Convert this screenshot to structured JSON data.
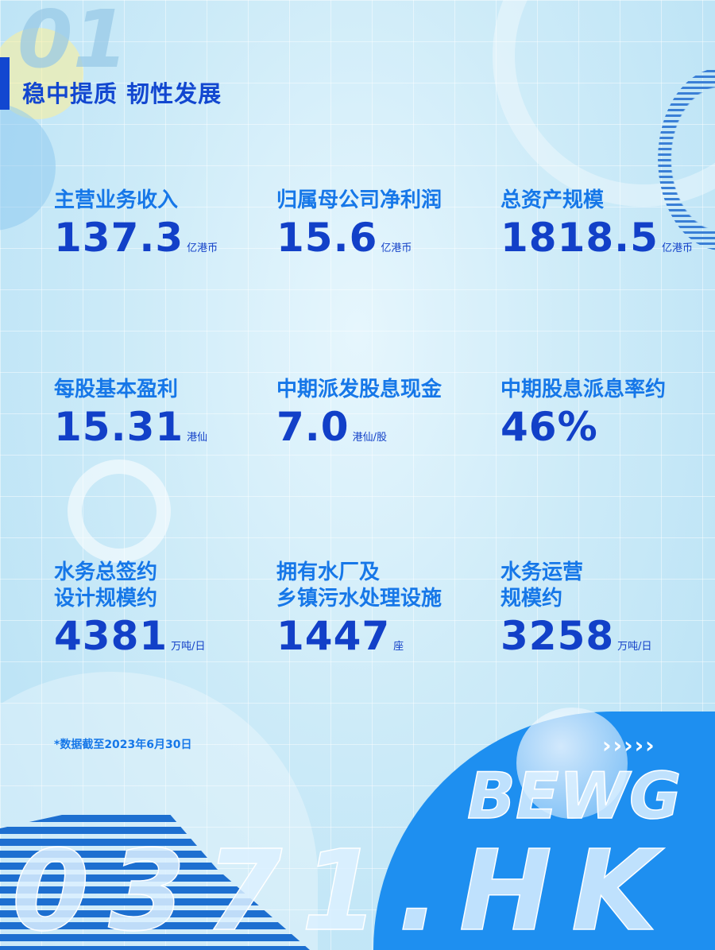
{
  "header": {
    "section_number": "01",
    "title": "稳中提质 韧性发展"
  },
  "stats": [
    {
      "label": "主营业务收入",
      "value": "137.3",
      "unit": "亿港币"
    },
    {
      "label": "归属母公司净利润",
      "value": "15.6",
      "unit": "亿港币"
    },
    {
      "label": "总资产规模",
      "value": "1818.5",
      "unit": "亿港币"
    },
    {
      "label": "每股基本盈利",
      "value": "15.31",
      "unit": "港仙"
    },
    {
      "label": "中期派发股息现金",
      "value": "7.0",
      "unit": "港仙/股"
    },
    {
      "label": "中期股息派息率约",
      "value": "46%",
      "unit": ""
    },
    {
      "label": "水务总签约\n设计规模约",
      "value": "4381",
      "unit": "万吨/日"
    },
    {
      "label": "拥有水厂及\n乡镇污水处理设施",
      "value": "1447",
      "unit": "座"
    },
    {
      "label": "水务运营\n规模约",
      "value": "3258",
      "unit": "万吨/日"
    }
  ],
  "footnote": "*数据截至2023年6月30日",
  "watermark": {
    "brand": "BEWG",
    "code": "0371.HK",
    "arrows": "›››››"
  },
  "colors": {
    "title": "#1247d0",
    "label": "#1677e8",
    "value": "#1240c8",
    "circle": "#1e8ff0"
  }
}
